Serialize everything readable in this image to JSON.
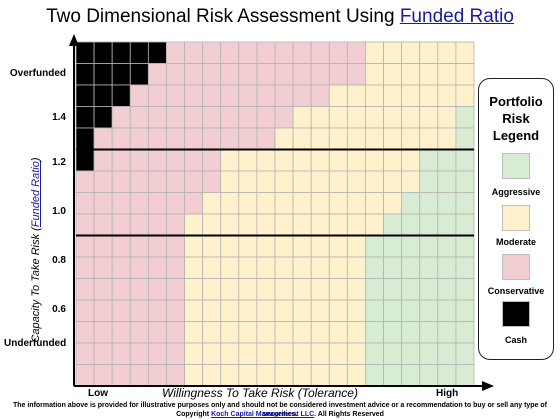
{
  "title": {
    "prefix": "Two Dimensional Risk Assessment Using ",
    "link": "Funded Ratio"
  },
  "y_axis": {
    "label_prefix": "Capacity To Take Risk (",
    "label_link": "Funded Ratio",
    "label_suffix": ")",
    "ticks": {
      "overfunded": "Overfunded",
      "v14": "1.4",
      "v12": "1.2",
      "v10": "1.0",
      "v08": "0.8",
      "v06": "0.6",
      "underfunded": "Underfunded"
    }
  },
  "x_axis": {
    "label": "Willingness To Take Risk (Tolerance)",
    "low": "Low",
    "high": "High"
  },
  "legend": {
    "title_1": "Portfolio",
    "title_2": "Risk",
    "title_3": "Legend",
    "items": [
      {
        "key": "A",
        "label": "Aggressive",
        "color": "#d8ebd3"
      },
      {
        "key": "M",
        "label": "Moderate",
        "color": "#fff1cb"
      },
      {
        "key": "C",
        "label": "Conservative",
        "color": "#f2cdd1"
      },
      {
        "key": "K",
        "label": "Cash",
        "color": "#000000"
      }
    ]
  },
  "grid": {
    "rows": [
      "KKKKKCCCCCCCCCCCMMMMMM",
      "KKKKCCCCCCCCCCCCMMMMMM",
      "KKKCCCCCCCCCCCMMMMMMMM",
      "KKCCCCCCCCCCMMMMMMMMMA",
      "KCCCCCCCCCCMMMMMMMMMMA",
      "KCCCCCCCMMMMMMMMMMMAAA",
      "CCCCCCCCMMMMMMMMMMMAAA",
      "CCCCCCCMMMMMMMMMMMAAAA",
      "CCCCCCMMMMMMMMMMMAAAAA",
      "CCCCCCMMMMMMMMMMAAAAAA",
      "CCCCCCMMMMMMMMMMAAAAAA",
      "CCCCCCMMMMMMMMMMAAAAAA",
      "CCCCCCMMMMMMMMMMAAAAAA",
      "CCCCCCMMMMMMMMMMAAAAAA",
      "CCCCCCMMMMMMMMMMAAAAAA",
      "CCCCCCMMMMMMMMMMAAAAAA"
    ],
    "band_values": [
      "1.2",
      "0.8"
    ]
  },
  "footer": {
    "line1": "The information above is provided for illustrative purposes only and should not be considered investment advice or a recommendation to buy or sell any type of securities.",
    "line2_prefix": "Copyright ",
    "line2_link": "Koch Capital Management LLC",
    "line2_suffix": ". All Rights Reserved"
  }
}
